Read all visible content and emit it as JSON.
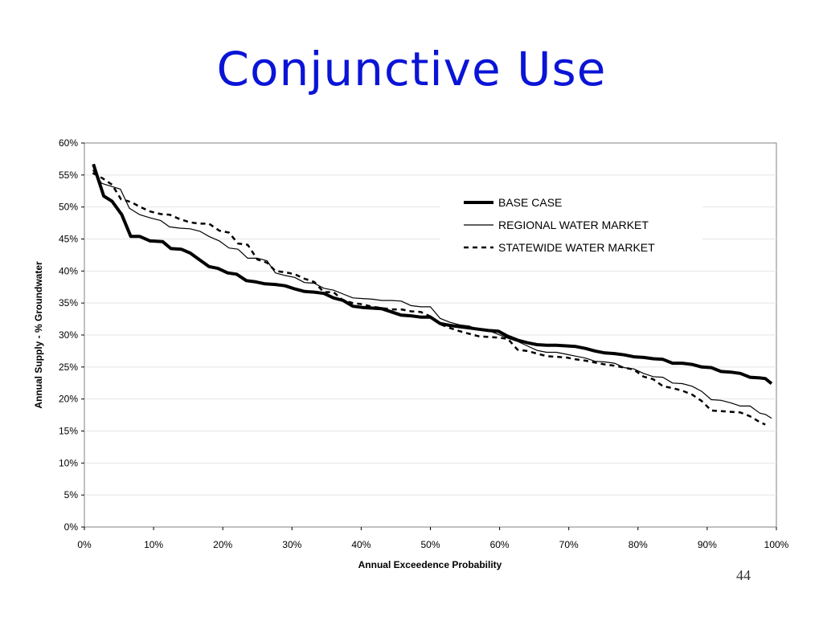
{
  "title": "Conjunctive Use",
  "page_number": "44",
  "chart_data": {
    "type": "line",
    "xlabel": "Annual Exceedence Probability",
    "ylabel": "Annual Supply - % Groundwater",
    "xlim": [
      0,
      100
    ],
    "ylim": [
      0,
      60
    ],
    "x_ticks": [
      "0%",
      "10%",
      "20%",
      "30%",
      "40%",
      "50%",
      "60%",
      "70%",
      "80%",
      "90%",
      "100%"
    ],
    "y_ticks": [
      "0%",
      "5%",
      "10%",
      "15%",
      "20%",
      "25%",
      "30%",
      "35%",
      "40%",
      "45%",
      "50%",
      "55%",
      "60%"
    ],
    "grid": true,
    "legend_position": "top-right",
    "series": [
      {
        "name": "BASE CASE",
        "style": "thick-solid",
        "color": "#000000",
        "points": [
          [
            1.3,
            56.7
          ],
          [
            1.8,
            55.0
          ],
          [
            2.8,
            51.7
          ],
          [
            4.0,
            50.9
          ],
          [
            5.4,
            48.8
          ],
          [
            6.7,
            45.4
          ],
          [
            8.0,
            45.4
          ],
          [
            9.5,
            44.7
          ],
          [
            11.3,
            44.6
          ],
          [
            12.5,
            43.5
          ],
          [
            14.0,
            43.4
          ],
          [
            15.3,
            42.8
          ],
          [
            16.7,
            41.7
          ],
          [
            18.0,
            40.7
          ],
          [
            19.3,
            40.4
          ],
          [
            20.7,
            39.7
          ],
          [
            22.0,
            39.5
          ],
          [
            23.4,
            38.5
          ],
          [
            24.8,
            38.3
          ],
          [
            26.1,
            38.0
          ],
          [
            27.6,
            37.9
          ],
          [
            29.0,
            37.7
          ],
          [
            30.4,
            37.2
          ],
          [
            31.8,
            36.8
          ],
          [
            33.2,
            36.7
          ],
          [
            34.6,
            36.5
          ],
          [
            36.0,
            35.8
          ],
          [
            37.4,
            35.4
          ],
          [
            38.8,
            34.5
          ],
          [
            40.2,
            34.3
          ],
          [
            41.6,
            34.2
          ],
          [
            43.0,
            34.1
          ],
          [
            44.4,
            33.6
          ],
          [
            45.8,
            33.1
          ],
          [
            47.2,
            33.0
          ],
          [
            48.6,
            32.8
          ],
          [
            50.0,
            32.8
          ],
          [
            51.4,
            31.8
          ],
          [
            52.8,
            31.5
          ],
          [
            54.2,
            31.3
          ],
          [
            55.6,
            31.1
          ],
          [
            57.0,
            30.9
          ],
          [
            58.4,
            30.7
          ],
          [
            59.8,
            30.6
          ],
          [
            61.2,
            29.8
          ],
          [
            62.6,
            29.2
          ],
          [
            64.0,
            28.8
          ],
          [
            65.4,
            28.5
          ],
          [
            66.8,
            28.4
          ],
          [
            68.2,
            28.4
          ],
          [
            69.6,
            28.3
          ],
          [
            71.0,
            28.2
          ],
          [
            72.4,
            27.9
          ],
          [
            73.8,
            27.5
          ],
          [
            75.2,
            27.2
          ],
          [
            76.6,
            27.1
          ],
          [
            78.0,
            26.9
          ],
          [
            79.4,
            26.6
          ],
          [
            80.8,
            26.5
          ],
          [
            82.2,
            26.3
          ],
          [
            83.6,
            26.2
          ],
          [
            85.0,
            25.6
          ],
          [
            86.4,
            25.6
          ],
          [
            87.8,
            25.4
          ],
          [
            89.2,
            25.0
          ],
          [
            90.6,
            24.9
          ],
          [
            92.0,
            24.3
          ],
          [
            93.4,
            24.2
          ],
          [
            94.8,
            24.0
          ],
          [
            96.2,
            23.4
          ],
          [
            97.6,
            23.3
          ],
          [
            98.4,
            23.2
          ],
          [
            99.3,
            22.4
          ]
        ]
      },
      {
        "name": "REGIONAL WATER MARKET",
        "style": "thin-solid",
        "color": "#000000",
        "points": [
          [
            1.2,
            55.8
          ],
          [
            2.5,
            53.7
          ],
          [
            3.7,
            53.3
          ],
          [
            5.2,
            52.8
          ],
          [
            6.5,
            49.8
          ],
          [
            8.0,
            48.8
          ],
          [
            9.5,
            48.3
          ],
          [
            11.0,
            47.9
          ],
          [
            12.3,
            46.9
          ],
          [
            13.8,
            46.7
          ],
          [
            15.3,
            46.6
          ],
          [
            16.7,
            46.2
          ],
          [
            18.0,
            45.4
          ],
          [
            19.5,
            44.7
          ],
          [
            20.9,
            43.6
          ],
          [
            22.2,
            43.4
          ],
          [
            23.6,
            42.0
          ],
          [
            25.0,
            42.0
          ],
          [
            26.4,
            41.6
          ],
          [
            27.6,
            39.7
          ],
          [
            29.0,
            39.3
          ],
          [
            30.4,
            39.0
          ],
          [
            31.8,
            38.2
          ],
          [
            33.2,
            38.1
          ],
          [
            34.6,
            37.3
          ],
          [
            36.0,
            37.0
          ],
          [
            37.4,
            36.4
          ],
          [
            38.8,
            35.8
          ],
          [
            40.2,
            35.7
          ],
          [
            41.6,
            35.6
          ],
          [
            43.0,
            35.4
          ],
          [
            44.4,
            35.4
          ],
          [
            45.8,
            35.3
          ],
          [
            47.2,
            34.6
          ],
          [
            48.6,
            34.4
          ],
          [
            50.0,
            34.4
          ],
          [
            51.4,
            32.6
          ],
          [
            52.8,
            32.0
          ],
          [
            54.2,
            31.6
          ],
          [
            55.6,
            31.4
          ],
          [
            57.0,
            30.8
          ],
          [
            58.4,
            30.7
          ],
          [
            59.8,
            30.1
          ],
          [
            61.2,
            29.5
          ],
          [
            62.6,
            29.0
          ],
          [
            64.0,
            28.3
          ],
          [
            65.4,
            27.6
          ],
          [
            66.8,
            27.3
          ],
          [
            68.2,
            27.3
          ],
          [
            69.6,
            27.0
          ],
          [
            71.0,
            26.7
          ],
          [
            72.4,
            26.4
          ],
          [
            73.8,
            25.9
          ],
          [
            75.2,
            25.8
          ],
          [
            76.6,
            25.6
          ],
          [
            78.0,
            24.9
          ],
          [
            79.4,
            24.7
          ],
          [
            80.8,
            24.0
          ],
          [
            82.2,
            23.5
          ],
          [
            83.6,
            23.4
          ],
          [
            85.0,
            22.5
          ],
          [
            86.4,
            22.4
          ],
          [
            87.8,
            22.0
          ],
          [
            89.2,
            21.2
          ],
          [
            90.6,
            19.9
          ],
          [
            92.0,
            19.8
          ],
          [
            93.4,
            19.4
          ],
          [
            94.8,
            18.9
          ],
          [
            96.2,
            18.9
          ],
          [
            97.6,
            17.8
          ],
          [
            98.4,
            17.6
          ],
          [
            99.3,
            17.0
          ]
        ]
      },
      {
        "name": "STATEWIDE WATER MARKET",
        "style": "dashed",
        "color": "#000000",
        "points": [
          [
            1.2,
            55.3
          ],
          [
            2.6,
            54.5
          ],
          [
            4.0,
            53.5
          ],
          [
            5.3,
            51.2
          ],
          [
            6.7,
            50.8
          ],
          [
            8.1,
            50.0
          ],
          [
            9.5,
            49.3
          ],
          [
            11.0,
            48.9
          ],
          [
            12.3,
            48.8
          ],
          [
            13.8,
            48.1
          ],
          [
            15.3,
            47.6
          ],
          [
            16.7,
            47.4
          ],
          [
            18.0,
            47.4
          ],
          [
            19.5,
            46.3
          ],
          [
            20.9,
            46.0
          ],
          [
            22.2,
            44.3
          ],
          [
            23.6,
            44.1
          ],
          [
            25.0,
            41.8
          ],
          [
            26.4,
            41.3
          ],
          [
            27.6,
            40.0
          ],
          [
            29.0,
            39.8
          ],
          [
            30.4,
            39.5
          ],
          [
            31.8,
            38.8
          ],
          [
            33.2,
            38.3
          ],
          [
            34.6,
            36.7
          ],
          [
            36.0,
            36.7
          ],
          [
            37.4,
            35.4
          ],
          [
            38.8,
            35.0
          ],
          [
            40.2,
            34.8
          ],
          [
            41.6,
            34.4
          ],
          [
            43.0,
            34.2
          ],
          [
            44.4,
            34.0
          ],
          [
            45.8,
            34.0
          ],
          [
            47.2,
            33.7
          ],
          [
            48.6,
            33.6
          ],
          [
            50.0,
            32.9
          ],
          [
            51.4,
            31.7
          ],
          [
            52.8,
            31.1
          ],
          [
            54.2,
            30.6
          ],
          [
            55.6,
            30.2
          ],
          [
            57.0,
            29.8
          ],
          [
            58.4,
            29.7
          ],
          [
            59.8,
            29.6
          ],
          [
            61.2,
            29.4
          ],
          [
            62.6,
            27.7
          ],
          [
            64.0,
            27.5
          ],
          [
            65.4,
            27.1
          ],
          [
            66.8,
            26.7
          ],
          [
            68.2,
            26.6
          ],
          [
            69.6,
            26.5
          ],
          [
            71.0,
            26.2
          ],
          [
            72.4,
            26.0
          ],
          [
            73.8,
            25.7
          ],
          [
            75.2,
            25.4
          ],
          [
            76.6,
            25.2
          ],
          [
            78.0,
            24.9
          ],
          [
            79.4,
            24.6
          ],
          [
            80.8,
            23.5
          ],
          [
            82.2,
            23.1
          ],
          [
            83.6,
            22.0
          ],
          [
            85.0,
            21.7
          ],
          [
            86.4,
            21.3
          ],
          [
            87.8,
            20.7
          ],
          [
            89.2,
            19.7
          ],
          [
            90.6,
            18.2
          ],
          [
            92.0,
            18.1
          ],
          [
            93.4,
            18.0
          ],
          [
            94.8,
            17.9
          ],
          [
            96.2,
            17.3
          ],
          [
            97.6,
            16.4
          ],
          [
            98.4,
            16.0
          ]
        ]
      }
    ]
  }
}
